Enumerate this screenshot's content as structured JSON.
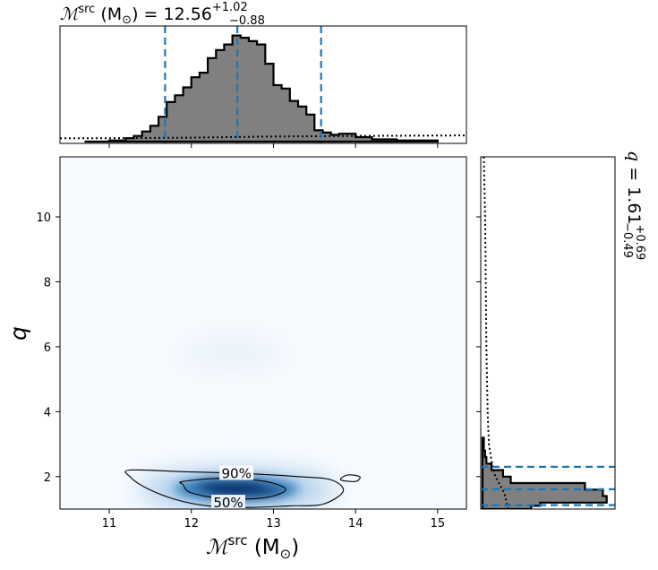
{
  "chart_data": [
    {
      "panel": "top-marginal",
      "type": "histogram",
      "title_prefix": "ℳ",
      "title_sup": "src",
      "title_mid": " (M",
      "title_sub": "⊙",
      "title_end": ") = 12.56",
      "title_plus": "+1.02",
      "title_minus": "−0.88",
      "xlim": [
        10.4,
        15.35
      ],
      "median": 12.56,
      "lower": 11.68,
      "upper": 13.58,
      "bins": [
        [
          10.7,
          11.0,
          0.0
        ],
        [
          11.0,
          11.2,
          0.01
        ],
        [
          11.2,
          11.3,
          0.03
        ],
        [
          11.3,
          11.4,
          0.05
        ],
        [
          11.4,
          11.5,
          0.09
        ],
        [
          11.5,
          11.6,
          0.14
        ],
        [
          11.6,
          11.7,
          0.22
        ],
        [
          11.7,
          11.8,
          0.35
        ],
        [
          11.8,
          11.9,
          0.41
        ],
        [
          11.9,
          12.0,
          0.48
        ],
        [
          12.0,
          12.1,
          0.57
        ],
        [
          12.1,
          12.2,
          0.61
        ],
        [
          12.2,
          12.3,
          0.74
        ],
        [
          12.3,
          12.4,
          0.81
        ],
        [
          12.4,
          12.5,
          0.86
        ],
        [
          12.5,
          12.6,
          0.94
        ],
        [
          12.6,
          12.7,
          0.92
        ],
        [
          12.7,
          12.8,
          0.89
        ],
        [
          12.8,
          12.9,
          0.86
        ],
        [
          12.9,
          13.0,
          0.69
        ],
        [
          13.0,
          13.1,
          0.5
        ],
        [
          13.1,
          13.2,
          0.47
        ],
        [
          13.2,
          13.3,
          0.36
        ],
        [
          13.3,
          13.4,
          0.31
        ],
        [
          13.4,
          13.5,
          0.24
        ],
        [
          13.5,
          13.6,
          0.1
        ],
        [
          13.6,
          13.7,
          0.08
        ],
        [
          13.7,
          13.8,
          0.06
        ],
        [
          13.8,
          14.0,
          0.07
        ],
        [
          14.0,
          14.2,
          0.04
        ],
        [
          14.2,
          14.5,
          0.02
        ],
        [
          14.5,
          15.0,
          0.01
        ]
      ],
      "prior_curve": [
        [
          10.4,
          0.03
        ],
        [
          11.0,
          0.03
        ],
        [
          12.0,
          0.035
        ],
        [
          13.0,
          0.045
        ],
        [
          14.0,
          0.05
        ],
        [
          15.35,
          0.055
        ]
      ]
    },
    {
      "panel": "right-marginal",
      "type": "histogram",
      "label_prefix": "q",
      "label_mid": " = 1.61",
      "label_plus": "+0.69",
      "label_minus": "−0.49",
      "ylim": [
        1.0,
        11.85
      ],
      "median": 1.61,
      "lower": 1.12,
      "upper": 2.3,
      "bins": [
        [
          1.0,
          1.1,
          0.38
        ],
        [
          1.1,
          1.2,
          0.45
        ],
        [
          1.2,
          1.4,
          0.97
        ],
        [
          1.4,
          1.6,
          0.94
        ],
        [
          1.6,
          1.8,
          0.8
        ],
        [
          1.8,
          2.0,
          0.22
        ],
        [
          2.0,
          2.2,
          0.16
        ],
        [
          2.2,
          2.4,
          0.07
        ],
        [
          2.4,
          2.6,
          0.03
        ],
        [
          2.6,
          2.8,
          0.02
        ],
        [
          2.8,
          3.2,
          0.01
        ]
      ],
      "prior_curve": [
        [
          1.0,
          0.2
        ],
        [
          1.5,
          0.17
        ],
        [
          2.0,
          0.1
        ],
        [
          2.5,
          0.07
        ],
        [
          3.0,
          0.05
        ],
        [
          4.0,
          0.04
        ],
        [
          6.0,
          0.03
        ],
        [
          8.0,
          0.025
        ],
        [
          10.0,
          0.02
        ],
        [
          11.85,
          0.01
        ]
      ]
    },
    {
      "panel": "joint",
      "type": "heatmap",
      "xlabel_main": "ℳ",
      "xlabel_sup": "src",
      "xlabel_rest": " (M",
      "xlabel_sub": "⊙",
      "xlabel_end": ")",
      "ylabel": "q",
      "xlim": [
        10.4,
        15.35
      ],
      "ylim": [
        1.0,
        11.85
      ],
      "xticks": [
        "11",
        "12",
        "13",
        "14",
        "15"
      ],
      "yticks": [
        "2",
        "4",
        "6",
        "8",
        "10"
      ],
      "density_peaks": [
        [
          12.55,
          1.62,
          1.0
        ],
        [
          12.3,
          1.7,
          0.6
        ],
        [
          12.9,
          1.55,
          0.5
        ]
      ],
      "contours": [
        {
          "label": "90%",
          "points": [
            [
              11.25,
              2.2
            ],
            [
              11.9,
              2.15
            ],
            [
              12.6,
              2.1
            ],
            [
              13.3,
              2.0
            ],
            [
              13.7,
              1.9
            ],
            [
              13.85,
              1.55
            ],
            [
              13.6,
              1.15
            ],
            [
              13.2,
              1.1
            ],
            [
              12.7,
              1.05
            ],
            [
              12.2,
              1.1
            ],
            [
              11.8,
              1.3
            ],
            [
              11.45,
              1.65
            ],
            [
              11.25,
              2.0
            ]
          ]
        },
        {
          "label": "",
          "points": [
            [
              13.9,
              2.05
            ],
            [
              14.05,
              2.0
            ],
            [
              14.0,
              1.85
            ],
            [
              13.82,
              1.9
            ]
          ]
        },
        {
          "label": "50%",
          "points": [
            [
              11.9,
              1.85
            ],
            [
              12.4,
              1.95
            ],
            [
              12.9,
              1.85
            ],
            [
              13.15,
              1.6
            ],
            [
              12.9,
              1.35
            ],
            [
              12.4,
              1.32
            ],
            [
              12.0,
              1.5
            ],
            [
              11.9,
              1.75
            ]
          ]
        }
      ]
    }
  ],
  "colors": {
    "hist_fill": "#808080",
    "interval_line": "#1f77b4",
    "density_high": "#08306b",
    "density_mid": "#4a8fcb",
    "density_low": "#f7fbff"
  }
}
